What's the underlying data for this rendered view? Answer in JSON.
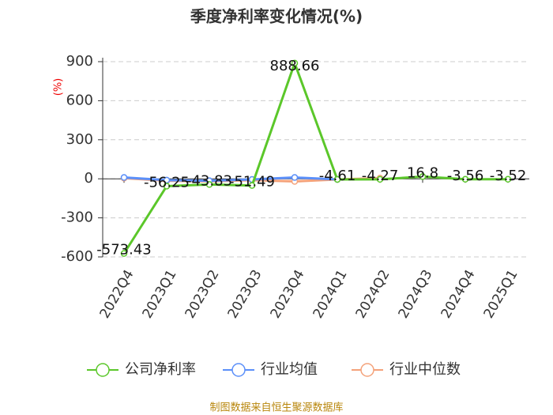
{
  "chart_data": {
    "type": "line",
    "title": "季度净利率变化情况(%)",
    "y_label": "(%)",
    "categories": [
      "2022Q4",
      "2023Q1",
      "2023Q2",
      "2023Q3",
      "2023Q4",
      "2024Q1",
      "2024Q2",
      "2024Q3",
      "2024Q4",
      "2025Q1"
    ],
    "series": [
      {
        "name": "公司净利率",
        "color": "#5bc72a",
        "values": [
          -573.43,
          -56.25,
          -43.83,
          -51.49,
          888.66,
          -4.61,
          -4.27,
          16.8,
          -3.56,
          -3.52
        ]
      },
      {
        "name": "行业均值",
        "color": "#5b8ff9",
        "values": [
          10,
          -10,
          -15,
          -5,
          10,
          -5,
          null,
          null,
          null,
          null
        ]
      },
      {
        "name": "行业中位数",
        "color": "#f4a27a",
        "values": [
          5,
          -15,
          -20,
          -10,
          -20,
          -5,
          5,
          null,
          null,
          null
        ]
      }
    ],
    "ylim": [
      -600,
      900
    ],
    "yticks": [
      -600,
      -300,
      0,
      300,
      600,
      900
    ],
    "grid": true,
    "source": "制图数据来自恒生聚源数据库"
  }
}
